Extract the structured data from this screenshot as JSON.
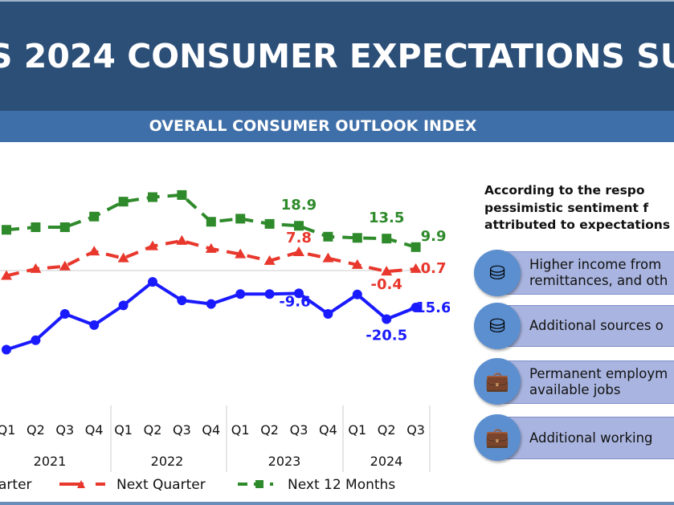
{
  "header": {
    "title": "S 2024 CONSUMER EXPECTATIONS SU",
    "subtitle": "OVERALL CONSUMER OUTLOOK INDEX"
  },
  "panel": {
    "intro": [
      "According to the respo",
      "pessimistic sentiment f",
      "attributed to expectations"
    ],
    "items": [
      {
        "icon": "coins-icon",
        "lines": [
          "Higher income from",
          "remittances, and oth"
        ]
      },
      {
        "icon": "coins-icon",
        "lines": [
          "Additional sources o"
        ]
      },
      {
        "icon": "briefcase-icon",
        "lines": [
          "Permanent employm",
          "available jobs"
        ]
      },
      {
        "icon": "briefcase-icon",
        "lines": [
          "Additional working"
        ]
      }
    ]
  },
  "chart_data": {
    "type": "line",
    "categories": [
      "Q1",
      "Q2",
      "Q3",
      "Q4",
      "Q1",
      "Q2",
      "Q3",
      "Q4",
      "Q1",
      "Q2",
      "Q3",
      "Q4",
      "Q1",
      "Q2",
      "Q3"
    ],
    "years": [
      "2021",
      "2022",
      "2023",
      "2024"
    ],
    "grid": false,
    "legend_position": "bottom",
    "series": [
      {
        "name": "arter",
        "color": "#1a1aff",
        "marker": "circle",
        "dash": false,
        "values": [
          -33.4,
          -29.4,
          -18.3,
          -23.0,
          -14.7,
          -4.8,
          -12.6,
          -14.1,
          -9.9,
          -9.9,
          -9.6,
          -18.3,
          -10.1,
          -20.5,
          -15.6
        ],
        "labels": {
          "10": "-9.6",
          "13": "-20.5",
          "14": "-15.6"
        }
      },
      {
        "name": "Next Quarter",
        "color": "#e8372c",
        "marker": "triangle",
        "dash": true,
        "values": [
          -2.2,
          0.7,
          1.8,
          8.1,
          5.2,
          10.3,
          12.6,
          9.2,
          6.9,
          4.1,
          7.8,
          5.2,
          2.4,
          -0.4,
          0.7
        ],
        "labels": {
          "10": "7.8",
          "13": "-0.4",
          "14": "0.7"
        }
      },
      {
        "name": "Next 12 Months",
        "color": "#2e8a2a",
        "marker": "square",
        "dash": true,
        "values": [
          17.2,
          18.3,
          18.3,
          22.8,
          29.1,
          31.0,
          31.9,
          20.6,
          21.9,
          19.7,
          18.9,
          14.3,
          13.8,
          13.5,
          9.9
        ],
        "labels": {
          "10": "18.9",
          "13": "13.5",
          "14": "9.9"
        }
      }
    ]
  }
}
